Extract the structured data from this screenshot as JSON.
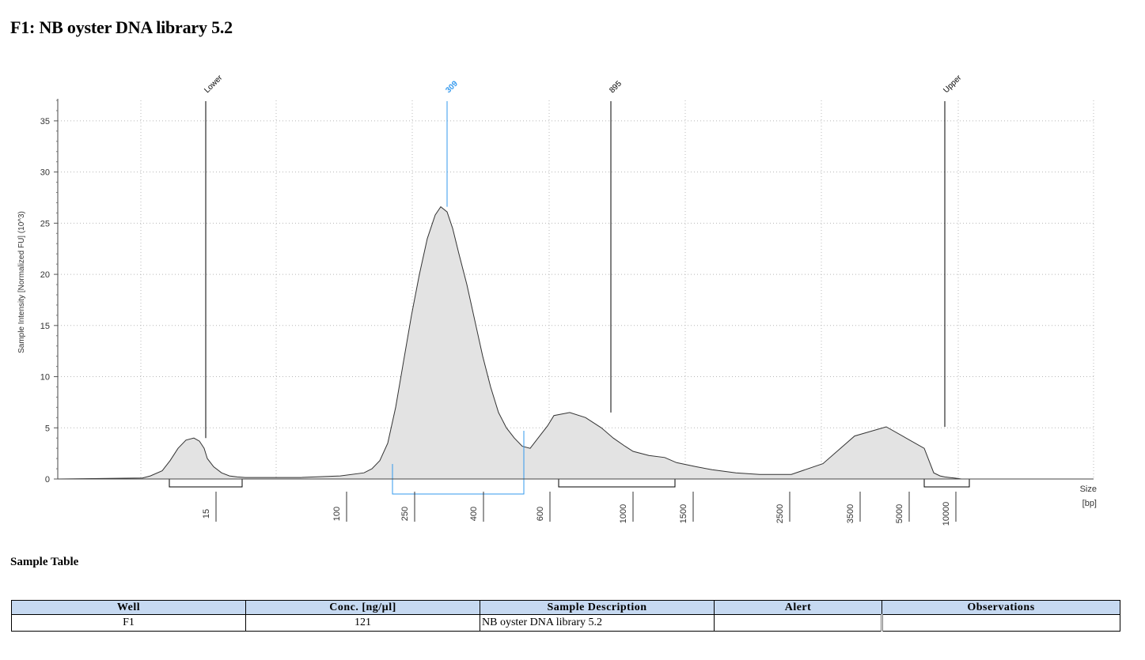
{
  "title": "F1: NB oyster DNA library 5.2",
  "chart_data": {
    "type": "line",
    "ylabel": "Sample Intensity [Normalized FU] (10^3)",
    "xlabel": "Size\n[bp]",
    "ylim": [
      0,
      37
    ],
    "y_ticks": [
      0,
      5,
      10,
      15,
      20,
      25,
      30,
      35
    ],
    "x_ticks": [
      "15",
      "100",
      "250",
      "400",
      "600",
      "1000",
      "1500",
      "2500",
      "3500",
      "5000",
      "10000"
    ],
    "grid": true,
    "peaks": [
      {
        "label": "Lower",
        "size": 15,
        "height": 4.0,
        "color": "#000000"
      },
      {
        "label": "309",
        "size": 309,
        "height": 26.6,
        "color": "#3399ee"
      },
      {
        "label": "895",
        "size": 895,
        "height": 6.5,
        "color": "#000000"
      },
      {
        "label": "Upper",
        "size": 10000,
        "height": 5.1,
        "color": "#000000"
      }
    ],
    "region_brackets": [
      {
        "from": 15,
        "to": 15,
        "color": "#000000"
      },
      {
        "from": 200,
        "to": 500,
        "color": "#3399ee"
      },
      {
        "from": 650,
        "to": 1450,
        "color": "#000000"
      },
      {
        "from": 10000,
        "to": 10000,
        "color": "#000000"
      }
    ],
    "trace": [
      [
        15,
        0.0
      ],
      [
        15,
        0.1
      ],
      [
        15,
        0.3
      ],
      [
        15,
        0.8
      ],
      [
        15,
        1.8
      ],
      [
        15,
        3.0
      ],
      [
        15,
        3.8
      ],
      [
        15,
        4.0
      ],
      [
        15,
        3.7
      ],
      [
        15,
        3.0
      ],
      [
        15,
        2.0
      ],
      [
        15,
        1.2
      ],
      [
        15,
        0.6
      ],
      [
        15,
        0.3
      ],
      [
        15,
        0.2
      ],
      [
        100,
        0.15
      ],
      [
        100,
        0.15
      ],
      [
        100,
        0.15
      ],
      [
        200,
        0.3
      ],
      [
        200,
        0.6
      ],
      [
        200,
        1.0
      ],
      [
        250,
        1.8
      ],
      [
        250,
        3.5
      ],
      [
        250,
        7.0
      ],
      [
        250,
        11.5
      ],
      [
        250,
        16.0
      ],
      [
        250,
        20.0
      ],
      [
        309,
        23.5
      ],
      [
        309,
        25.8
      ],
      [
        309,
        26.6
      ],
      [
        309,
        26.1
      ],
      [
        309,
        24.5
      ],
      [
        309,
        22.0
      ],
      [
        400,
        19.0
      ],
      [
        400,
        15.5
      ],
      [
        400,
        12.0
      ],
      [
        400,
        9.0
      ],
      [
        400,
        6.5
      ],
      [
        400,
        5.0
      ],
      [
        600,
        4.0
      ],
      [
        600,
        3.2
      ],
      [
        600,
        3.0
      ],
      [
        895,
        4.0
      ],
      [
        895,
        5.2
      ],
      [
        895,
        6.2
      ],
      [
        895,
        6.5
      ],
      [
        895,
        6.0
      ],
      [
        895,
        5.0
      ],
      [
        1500,
        4.0
      ],
      [
        1500,
        3.2
      ],
      [
        1500,
        2.7
      ],
      [
        2500,
        2.3
      ],
      [
        2500,
        2.1
      ],
      [
        2500,
        1.6
      ],
      [
        2500,
        1.2
      ],
      [
        3500,
        0.9
      ],
      [
        3500,
        0.6
      ],
      [
        5000,
        0.45
      ],
      [
        5000,
        0.45
      ],
      [
        10000,
        1.5
      ],
      [
        10000,
        4.2
      ],
      [
        10000,
        5.1
      ],
      [
        10000,
        3.0
      ],
      [
        10000,
        0.6
      ],
      [
        10000,
        0.3
      ],
      [
        10000,
        0.2
      ],
      [
        10000,
        0.15
      ],
      [
        10000,
        0.1
      ],
      [
        10000,
        0.0
      ]
    ]
  },
  "table": {
    "heading": "Sample Table",
    "headers": [
      "Well",
      "Conc. [ng/µl]",
      "Sample Description",
      "Alert",
      "Observations"
    ],
    "rows": [
      [
        "F1",
        "121",
        "NB oyster DNA library 5.2",
        "",
        ""
      ]
    ]
  }
}
